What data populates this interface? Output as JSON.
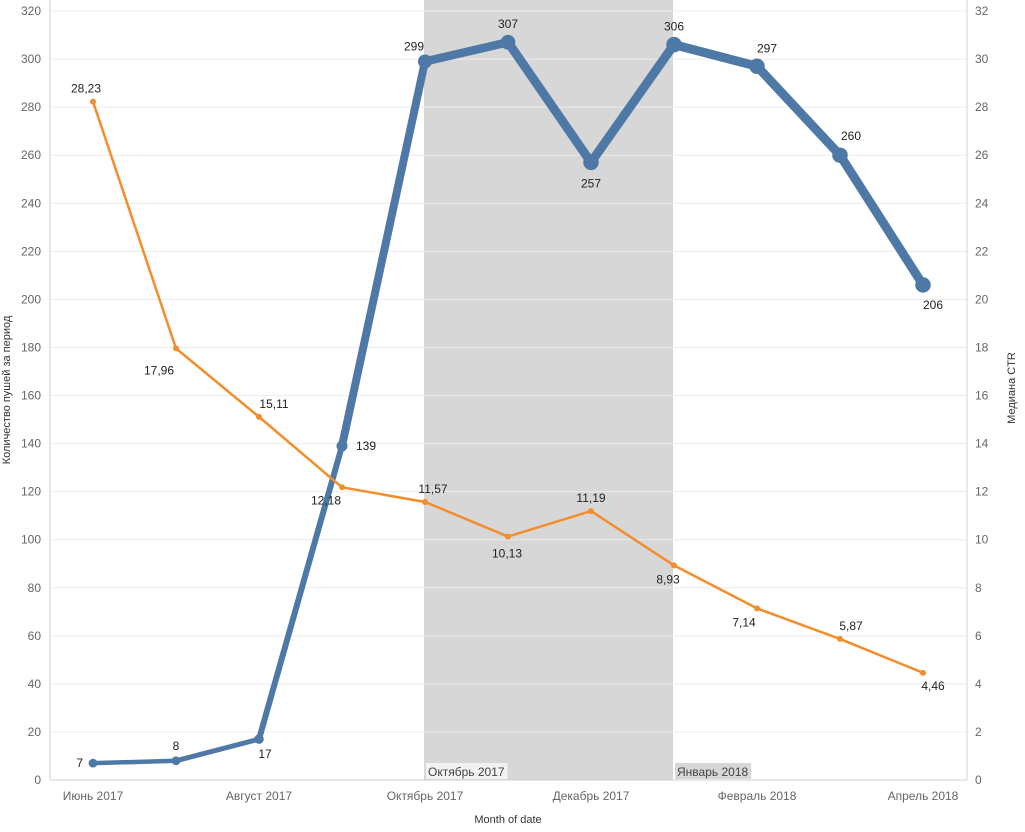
{
  "chart_data": {
    "type": "line",
    "x": [
      "2017-06",
      "2017-07",
      "2017-08",
      "2017-09",
      "2017-10",
      "2017-11",
      "2017-12",
      "2018-01",
      "2018-02",
      "2018-03",
      "2018-04"
    ],
    "xticks": [
      {
        "x": "2017-06",
        "label": "Июнь 2017"
      },
      {
        "x": "2017-08",
        "label": "Август 2017"
      },
      {
        "x": "2017-10",
        "label": "Октябрь 2017"
      },
      {
        "x": "2017-12",
        "label": "Декабрь 2017"
      },
      {
        "x": "2018-02",
        "label": "Февраль 2018"
      },
      {
        "x": "2018-04",
        "label": "Апрель 2018"
      }
    ],
    "xlabel": "Month of date",
    "ylabel_left": "Количество пушей за период",
    "ylabel_right": "Медиана CTR",
    "ylim_left": [
      0,
      320
    ],
    "ylim_right": [
      0,
      32
    ],
    "yticks_left": [
      0,
      20,
      40,
      60,
      80,
      100,
      120,
      140,
      160,
      180,
      200,
      220,
      240,
      260,
      280,
      300,
      320
    ],
    "yticks_right": [
      0,
      2,
      4,
      6,
      8,
      10,
      12,
      14,
      16,
      18,
      20,
      22,
      24,
      26,
      28,
      30,
      32
    ],
    "grid": true,
    "series": [
      {
        "axis": "left",
        "color": "#4e79a7",
        "values": [
          7,
          8,
          17,
          139,
          299,
          307,
          257,
          306,
          297,
          260,
          206
        ],
        "labels": [
          "7",
          "8",
          "17",
          "139",
          "299",
          "307",
          "257",
          "306",
          "297",
          "260",
          "206"
        ]
      },
      {
        "axis": "right",
        "color": "#f28e2b",
        "values": [
          28.23,
          17.96,
          15.11,
          12.18,
          11.57,
          10.13,
          11.19,
          8.93,
          7.14,
          5.87,
          4.46
        ],
        "labels": [
          "28,23",
          "17,96",
          "15,11",
          "12,18",
          "11,57",
          "10,13",
          "11,19",
          "8,93",
          "7,14",
          "5,87",
          "4,46"
        ]
      }
    ],
    "highlight_band": {
      "from": "2017-10",
      "to": "2018-01",
      "color": "#d7d7d7",
      "labels": [
        {
          "x": "2017-10",
          "text": "Октябрь 2017"
        },
        {
          "x": "2018-01",
          "text": "Январь 2018"
        }
      ]
    }
  }
}
